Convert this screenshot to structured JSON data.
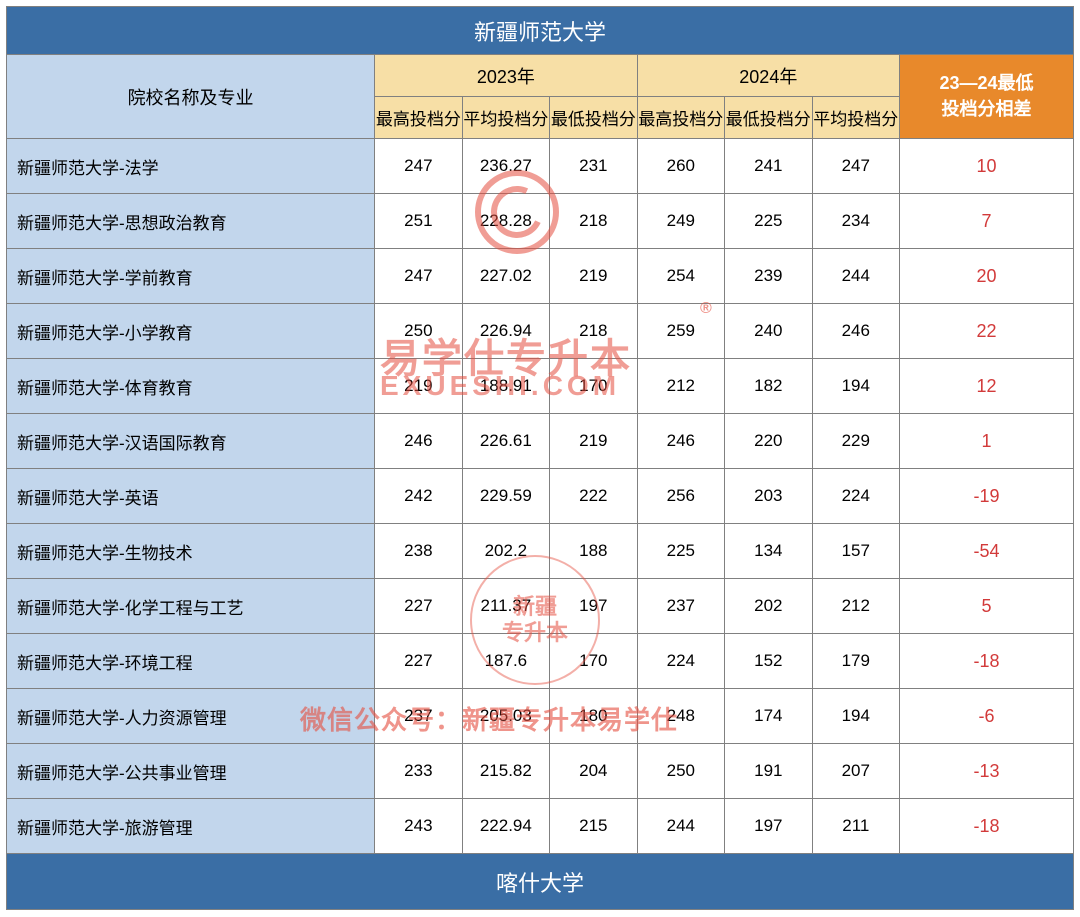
{
  "title": "新疆师范大学",
  "footer": "喀什大学",
  "colors": {
    "title_bg": "#3a6ea5",
    "title_fg": "#ffffff",
    "major_header_bg": "#c2d6ec",
    "year_header_bg": "#f7dfa6",
    "diff_header_bg": "#e8892b",
    "diff_header_fg": "#ffffff",
    "diff_value_fg": "#d23a3a",
    "border": "#808080",
    "watermark": "#e44d3e"
  },
  "headers": {
    "major": "院校名称及专业",
    "year_2023": "2023年",
    "year_2024": "2024年",
    "sub_2023": [
      "最高投档分",
      "平均投档分",
      "最低投档分"
    ],
    "sub_2024": [
      "最高投档分",
      "最低投档分",
      "平均投档分"
    ],
    "diff": "23—24最低\n投档分相差"
  },
  "column_widths_pct": [
    34.5,
    8.2,
    8.2,
    8.2,
    8.2,
    8.2,
    8.2,
    16.3
  ],
  "rows": [
    {
      "major": "新疆师范大学-法学",
      "y2023": [
        "247",
        "236.27",
        "231"
      ],
      "y2024": [
        "260",
        "241",
        "247"
      ],
      "diff": "10"
    },
    {
      "major": "新疆师范大学-思想政治教育",
      "y2023": [
        "251",
        "228.28",
        "218"
      ],
      "y2024": [
        "249",
        "225",
        "234"
      ],
      "diff": "7"
    },
    {
      "major": "新疆师范大学-学前教育",
      "y2023": [
        "247",
        "227.02",
        "219"
      ],
      "y2024": [
        "254",
        "239",
        "244"
      ],
      "diff": "20"
    },
    {
      "major": "新疆师范大学-小学教育",
      "y2023": [
        "250",
        "226.94",
        "218"
      ],
      "y2024": [
        "259",
        "240",
        "246"
      ],
      "diff": "22"
    },
    {
      "major": "新疆师范大学-体育教育",
      "y2023": [
        "219",
        "188.91",
        "170"
      ],
      "y2024": [
        "212",
        "182",
        "194"
      ],
      "diff": "12"
    },
    {
      "major": "新疆师范大学-汉语国际教育",
      "y2023": [
        "246",
        "226.61",
        "219"
      ],
      "y2024": [
        "246",
        "220",
        "229"
      ],
      "diff": "1"
    },
    {
      "major": "新疆师范大学-英语",
      "y2023": [
        "242",
        "229.59",
        "222"
      ],
      "y2024": [
        "256",
        "203",
        "224"
      ],
      "diff": "-19"
    },
    {
      "major": "新疆师范大学-生物技术",
      "y2023": [
        "238",
        "202.2",
        "188"
      ],
      "y2024": [
        "225",
        "134",
        "157"
      ],
      "diff": "-54"
    },
    {
      "major": "新疆师范大学-化学工程与工艺",
      "y2023": [
        "227",
        "211.37",
        "197"
      ],
      "y2024": [
        "237",
        "202",
        "212"
      ],
      "diff": "5"
    },
    {
      "major": "新疆师范大学-环境工程",
      "y2023": [
        "227",
        "187.6",
        "170"
      ],
      "y2024": [
        "224",
        "152",
        "179"
      ],
      "diff": "-18"
    },
    {
      "major": "新疆师范大学-人力资源管理",
      "y2023": [
        "237",
        "205.03",
        "180"
      ],
      "y2024": [
        "248",
        "174",
        "194"
      ],
      "diff": "-6"
    },
    {
      "major": "新疆师范大学-公共事业管理",
      "y2023": [
        "233",
        "215.82",
        "204"
      ],
      "y2024": [
        "250",
        "191",
        "207"
      ],
      "diff": "-13"
    },
    {
      "major": "新疆师范大学-旅游管理",
      "y2023": [
        "243",
        "222.94",
        "215"
      ],
      "y2024": [
        "244",
        "197",
        "211"
      ],
      "diff": "-18"
    }
  ],
  "watermarks": {
    "brand_cn": "易学仕专升本",
    "brand_en": "EXUESHI.COM",
    "reg_mark": "®",
    "stamp_line1": "新疆",
    "stamp_line2": "专升本",
    "wechat": "微信公众号：新疆专升本易学仕"
  }
}
